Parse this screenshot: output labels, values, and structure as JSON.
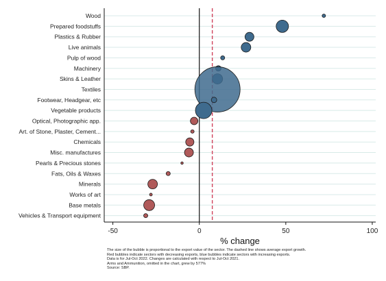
{
  "chart_data": {
    "type": "scatter",
    "subtype": "bubble",
    "xlabel": "% change",
    "xlim": [
      -55,
      102
    ],
    "xticks": [
      -50,
      0,
      50,
      100
    ],
    "average_line": 7.5,
    "grid": "horizontal",
    "colors": {
      "increase": "#3f6b8e",
      "decrease": "#b05a5a",
      "average_line": "#d0435c",
      "grid": "#d8eae8"
    },
    "categories": [
      "Wood",
      "Prepared foodstuffs",
      "Plastics & Rubber",
      "Live animals",
      "Pulp of wood",
      "Machinery",
      "Skins & Leather",
      "Textiles",
      "Footwear, Headgear, etc",
      "Vegetable products",
      "Optical, Photographic app.",
      "Art. of Stone, Plaster, Cement...",
      "Chemicals",
      "Misc. manufactures",
      "Pearls & Precious stones",
      "Fats, Oils & Waxes",
      "Minerals",
      "Works of art",
      "Base metals",
      "Vehicles & Transport equipment"
    ],
    "points": [
      {
        "label": "Wood",
        "x": 72,
        "size": 2.5,
        "trend": "increase"
      },
      {
        "label": "Prepared foodstuffs",
        "x": 48,
        "size": 9,
        "trend": "increase"
      },
      {
        "label": "Plastics & Rubber",
        "x": 29,
        "size": 6.5,
        "trend": "increase"
      },
      {
        "label": "Live animals",
        "x": 27,
        "size": 7,
        "trend": "increase"
      },
      {
        "label": "Pulp of wood",
        "x": 13.5,
        "size": 3,
        "trend": "increase"
      },
      {
        "label": "Machinery",
        "x": 11,
        "size": 4,
        "trend": "increase"
      },
      {
        "label": "Skins & Leather",
        "x": 10.5,
        "size": 7.5,
        "trend": "increase"
      },
      {
        "label": "Textiles",
        "x": 10.5,
        "size": 33,
        "trend": "increase"
      },
      {
        "label": "Footwear, Headgear, etc",
        "x": 8.5,
        "size": 4,
        "trend": "increase"
      },
      {
        "label": "Vegetable products",
        "x": 2.5,
        "size": 12,
        "trend": "increase"
      },
      {
        "label": "Optical, Photographic app.",
        "x": -3,
        "size": 5.5,
        "trend": "decrease"
      },
      {
        "label": "Art. of Stone, Plaster, Cement...",
        "x": -4,
        "size": 2.5,
        "trend": "decrease"
      },
      {
        "label": "Chemicals",
        "x": -5.5,
        "size": 6,
        "trend": "decrease"
      },
      {
        "label": "Misc. manufactures",
        "x": -6,
        "size": 6.5,
        "trend": "decrease"
      },
      {
        "label": "Pearls & Precious stones",
        "x": -10,
        "size": 1.8,
        "trend": "decrease"
      },
      {
        "label": "Fats, Oils & Waxes",
        "x": -18,
        "size": 3,
        "trend": "decrease"
      },
      {
        "label": "Minerals",
        "x": -27,
        "size": 7,
        "trend": "decrease"
      },
      {
        "label": "Works of art",
        "x": -28,
        "size": 2,
        "trend": "decrease"
      },
      {
        "label": "Base metals",
        "x": -29,
        "size": 8,
        "trend": "decrease"
      },
      {
        "label": "Vehicles & Transport equipment",
        "x": -31,
        "size": 3,
        "trend": "decrease"
      }
    ]
  },
  "notes": [
    "The size of the bubble is proportional to the export value of the sector. The dashed line shows average export growth.",
    "Red bubbles indicate sectors with decreasing exports, blue bubbles indicate sectors with increasing exports.",
    "Data is for Jul-Oct 2022. Changes are calculated with respect to Jul-Oct 2021.",
    "Arms and Ammunition, omitted in the chart, grew by 577%",
    "Source: SBP."
  ]
}
